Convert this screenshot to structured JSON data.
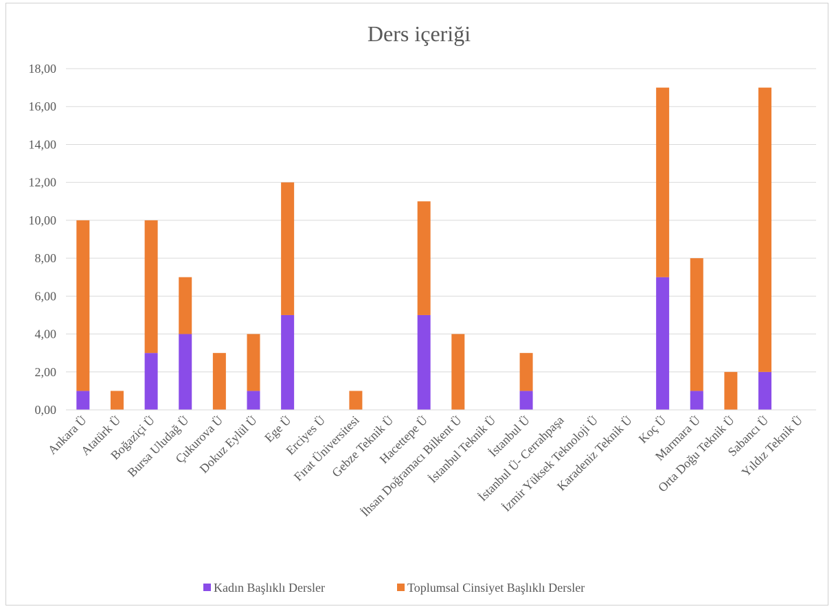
{
  "chart_data": {
    "type": "bar",
    "stacked": true,
    "title": "Ders içeriği",
    "categories": [
      "Ankara Ü",
      "Atatürk Ü",
      "Boğaziçi Ü",
      "Bursa Uludağ Ü",
      "Çukurova Ü",
      "Dokuz Eylül Ü",
      "Ege Ü",
      "Erciyes Ü",
      "Fırat Üniversitesi",
      "Gebze Teknik Ü",
      "Hacettepe Ü",
      "İhsan Doğramacı Bilkent Ü",
      "İstanbul Teknik Ü",
      "İstanbul  Ü",
      "İstanbul  Ü- Cerrahpaşa",
      "İzmir Yüksek Teknoloji Ü",
      "Karadeniz Teknik Ü",
      "Koç Ü",
      "Marmara Ü",
      "Orta Doğu Teknik Ü",
      "Sabancı Ü",
      "Yıldız Teknik Ü"
    ],
    "series": [
      {
        "name": "Kadın Başlıklı Dersler",
        "color": "#8a4ce8",
        "values": [
          1,
          0,
          3,
          4,
          0,
          1,
          5,
          0,
          0,
          0,
          5,
          0,
          0,
          1,
          0,
          0,
          0,
          7,
          1,
          0,
          2,
          0
        ]
      },
      {
        "name": "Toplumsal Cinsiyet Başlıklı Dersler",
        "color": "#ed7d31",
        "values": [
          9,
          1,
          7,
          3,
          3,
          3,
          7,
          0,
          1,
          0,
          6,
          4,
          0,
          2,
          0,
          0,
          0,
          10,
          7,
          2,
          15,
          0
        ]
      }
    ],
    "ylim": [
      0,
      18
    ],
    "yticks": [
      "0,00",
      "2,00",
      "4,00",
      "6,00",
      "8,00",
      "10,00",
      "12,00",
      "14,00",
      "16,00",
      "18,00"
    ],
    "grid": true,
    "legend_position": "bottom"
  }
}
